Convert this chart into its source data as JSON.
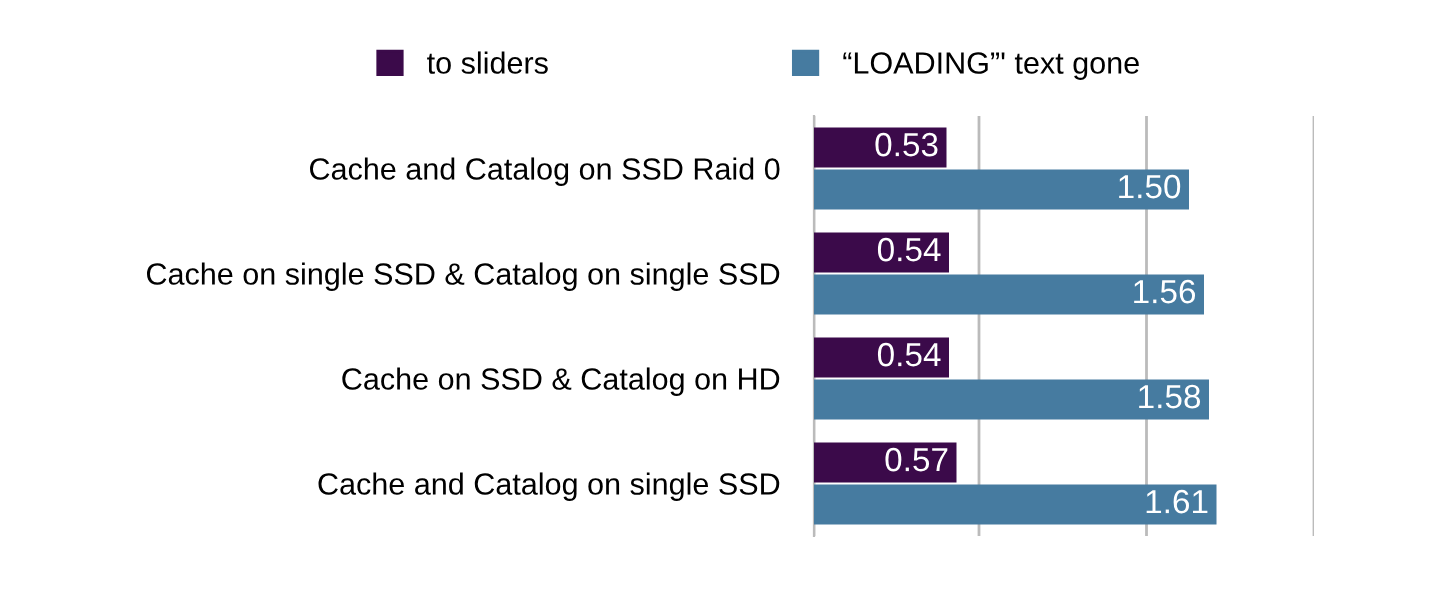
{
  "chart_data": {
    "type": "bar",
    "orientation": "horizontal",
    "categories": [
      "Cache and Catalog on SSD Raid 0",
      "Cache on single SSD & Catalog on single SSD",
      "Cache on SSD & Catalog on HD",
      "Cache and Catalog on single SSD"
    ],
    "series": [
      {
        "name": "to sliders",
        "color": "#3b0a4a",
        "values": [
          0.53,
          0.54,
          0.54,
          0.57
        ],
        "value_labels": [
          "0.53",
          "0.54",
          "0.54",
          "0.57"
        ]
      },
      {
        "name": "“LOADING”' text gone",
        "color": "#467ba0",
        "values": [
          1.5,
          1.56,
          1.58,
          1.61
        ],
        "value_labels": [
          "1.50",
          "1.56",
          "1.58",
          "1.61"
        ]
      }
    ],
    "xlim": [
      0,
      2
    ],
    "xticks": [
      {
        "value": 0,
        "label": null
      },
      {
        "value": 0.66,
        "label": null
      },
      {
        "value": 1.33,
        "label": null
      },
      {
        "value": 2,
        "label": null
      }
    ],
    "grid": "x",
    "legend": "top",
    "tick_labels": "y"
  }
}
